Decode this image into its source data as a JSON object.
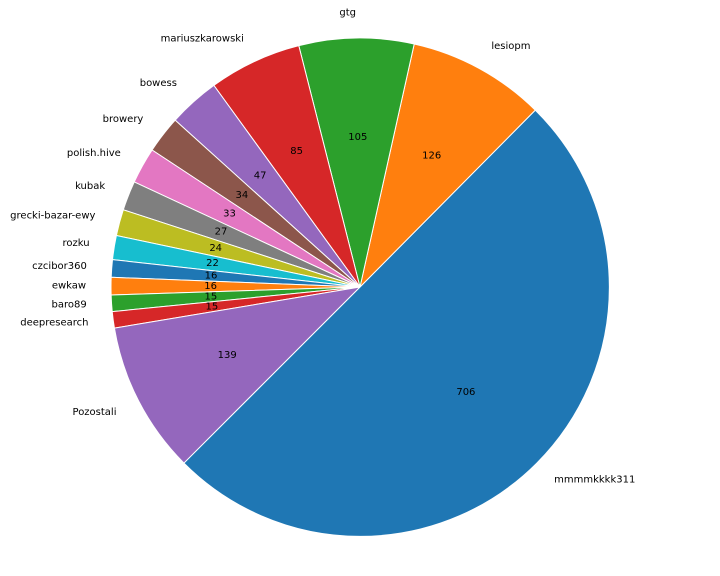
{
  "chart_data": {
    "type": "pie",
    "title": "",
    "start_angle_deg": 225,
    "direction": "counterclockwise",
    "slices": [
      {
        "label": "mmmmkkkk311",
        "value": 706,
        "color": "#1f77b4"
      },
      {
        "label": "lesiopm",
        "value": 126,
        "color": "#ff7f0e"
      },
      {
        "label": "gtg",
        "value": 105,
        "color": "#2ca02c"
      },
      {
        "label": "mariuszkarowski",
        "value": 85,
        "color": "#d62728"
      },
      {
        "label": "bowess",
        "value": 47,
        "color": "#9467bd"
      },
      {
        "label": "browery",
        "value": 34,
        "color": "#8c564b"
      },
      {
        "label": "polish.hive",
        "value": 33,
        "color": "#e377c2"
      },
      {
        "label": "kubak",
        "value": 27,
        "color": "#7f7f7f"
      },
      {
        "label": "grecki-bazar-ewy",
        "value": 24,
        "color": "#bcbd22"
      },
      {
        "label": "rozku",
        "value": 22,
        "color": "#17becf"
      },
      {
        "label": "czcibor360",
        "value": 16,
        "color": "#1f77b4"
      },
      {
        "label": "ewkaw",
        "value": 16,
        "color": "#ff7f0e"
      },
      {
        "label": "baro89",
        "value": 15,
        "color": "#2ca02c"
      },
      {
        "label": "deepresearch",
        "value": 15,
        "color": "#d62728"
      },
      {
        "label": "Pozostali",
        "value": 139,
        "color": "#9467bd"
      }
    ]
  }
}
